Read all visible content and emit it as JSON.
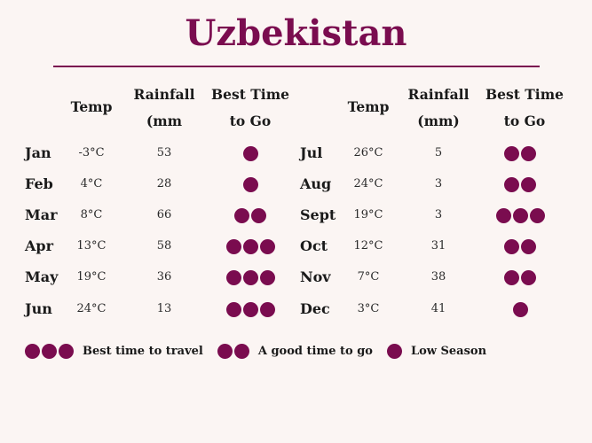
{
  "title": "Uzbekistan",
  "headers": {
    "temp": "Temp",
    "rain_line1": "Rainfall",
    "rain_line2_left": "(mm",
    "rain_line2_right": "(mm)",
    "best_line1": "Best Time",
    "best_line2": "to Go"
  },
  "left_rows": [
    {
      "month": "Jan",
      "temp": "-3°C",
      "rain": "53",
      "rating": 1
    },
    {
      "month": "Feb",
      "temp": "4°C",
      "rain": "28",
      "rating": 1
    },
    {
      "month": "Mar",
      "temp": "8°C",
      "rain": "66",
      "rating": 2
    },
    {
      "month": "Apr",
      "temp": "13°C",
      "rain": "58",
      "rating": 3
    },
    {
      "month": "May",
      "temp": "19°C",
      "rain": "36",
      "rating": 3
    },
    {
      "month": "Jun",
      "temp": "24°C",
      "rain": "13",
      "rating": 3
    }
  ],
  "right_rows": [
    {
      "month": "Jul",
      "temp": "26°C",
      "rain": "5",
      "rating": 2
    },
    {
      "month": "Aug",
      "temp": "24°C",
      "rain": "3",
      "rating": 2
    },
    {
      "month": "Sept",
      "temp": "19°C",
      "rain": "3",
      "rating": 3
    },
    {
      "month": "Oct",
      "temp": "12°C",
      "rain": "31",
      "rating": 2
    },
    {
      "month": "Nov",
      "temp": "7°C",
      "rain": "38",
      "rating": 2
    },
    {
      "month": "Dec",
      "temp": "3°C",
      "rain": "41",
      "rating": 1
    }
  ],
  "legend": [
    {
      "rating": 3,
      "label": "Best time to travel"
    },
    {
      "rating": 2,
      "label": "A good time to go"
    },
    {
      "rating": 1,
      "label": "Low Season"
    }
  ],
  "accent_color": "#7a0c4f"
}
